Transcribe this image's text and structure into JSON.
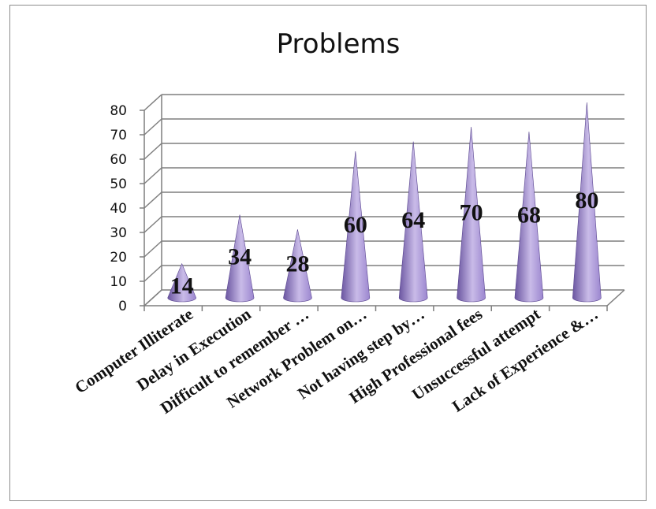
{
  "chart_data": {
    "type": "bar",
    "bar_shape": "cone",
    "title": "Problems",
    "categories": [
      "Computer Illiterate",
      "Delay in Execution",
      "Difficult to remember …",
      "Network Problem on…",
      "Not having step by…",
      "High Professional fees",
      "Unsuccessful attempt",
      "Lack of Experience &…"
    ],
    "series": [
      {
        "values": [
          14,
          34,
          28,
          60,
          64,
          70,
          68,
          80
        ]
      }
    ],
    "data_labels": [
      "14",
      "34",
      "28",
      "60",
      "64",
      "70",
      "68",
      "80"
    ],
    "y_ticks": [
      "0",
      "10",
      "20",
      "30",
      "40",
      "50",
      "60",
      "70",
      "80"
    ],
    "ylim": [
      0,
      80
    ],
    "grid": true,
    "legend": "none",
    "colors": {
      "cone_dark": "#6a55a0",
      "cone_mid": "#9b86cf",
      "cone_light": "#c9bbe8",
      "grid": "#7f7f7f"
    }
  }
}
